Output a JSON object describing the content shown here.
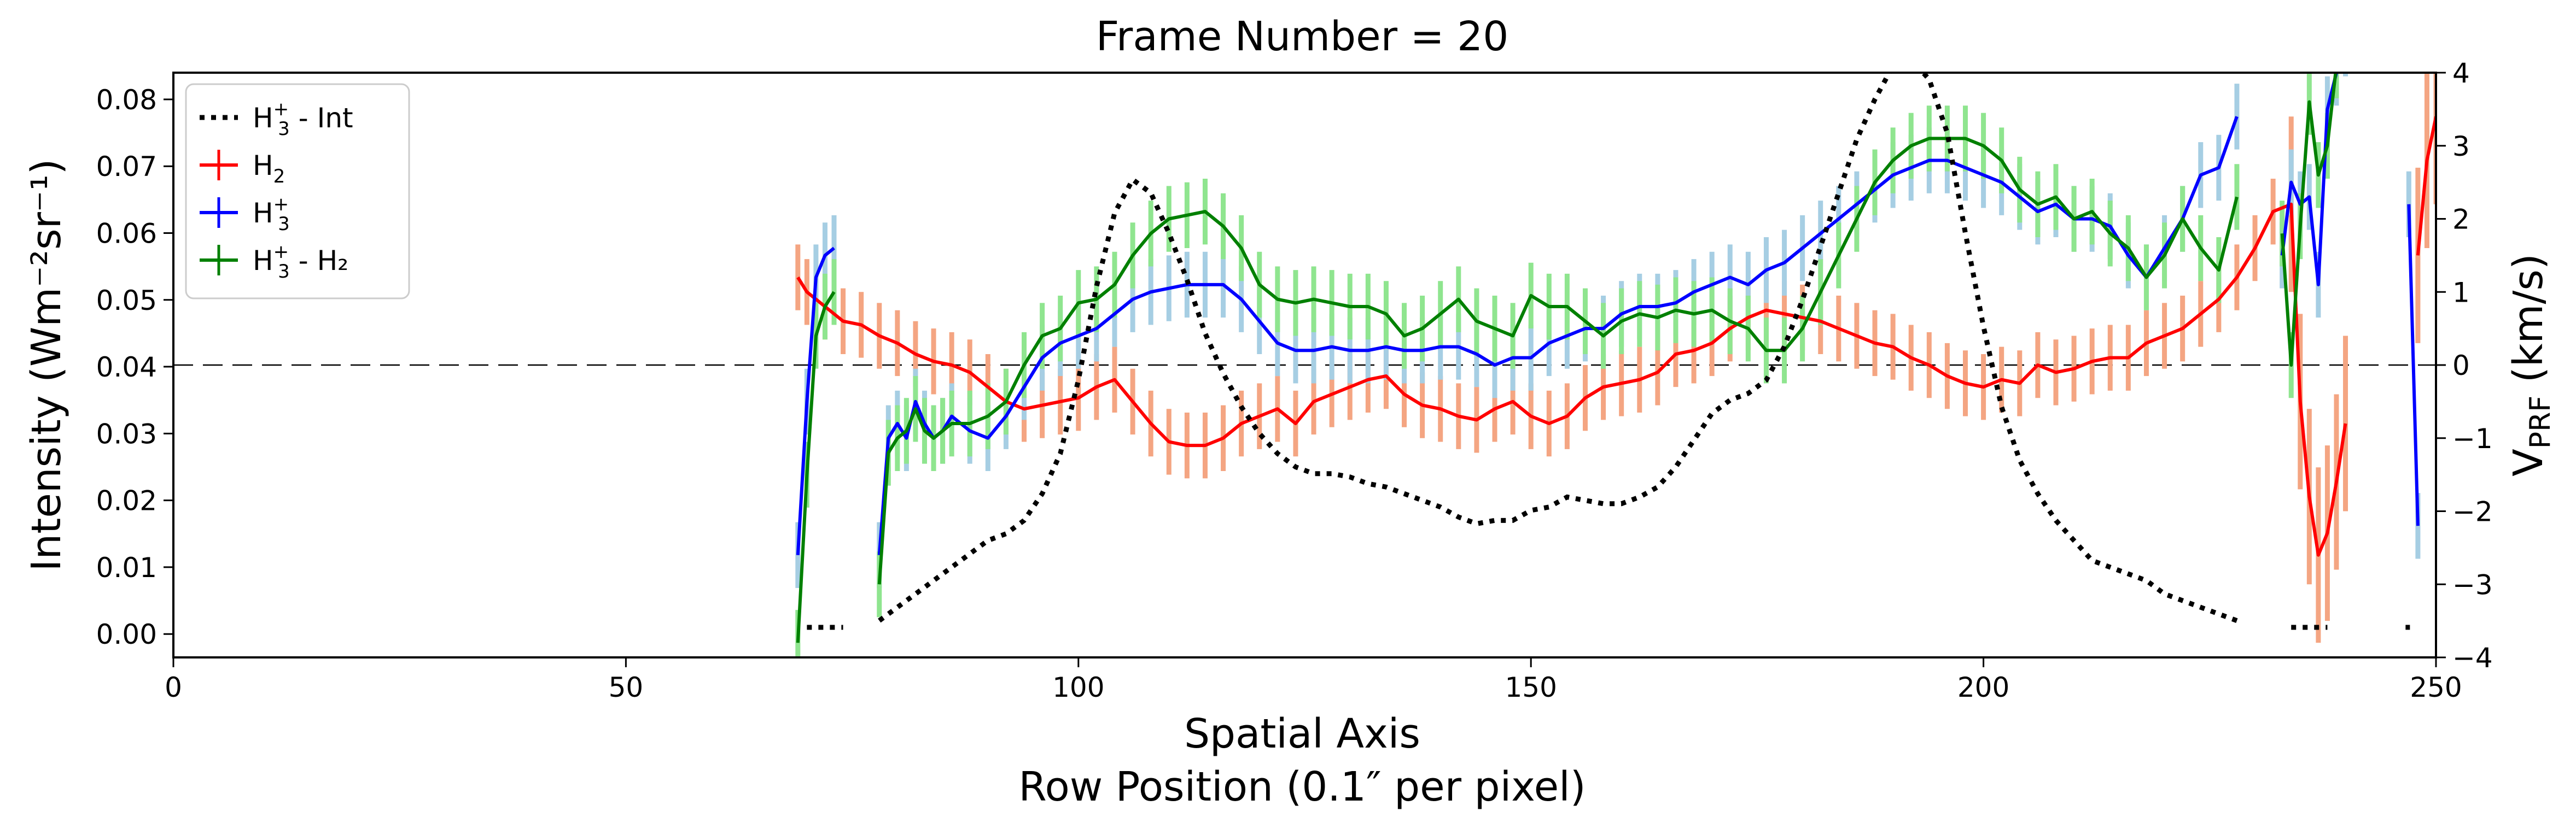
{
  "chart_data": {
    "type": "line",
    "title": "Frame Number = 20",
    "xlabel_line1": "Spatial Axis",
    "xlabel_line2": "Row Position (0.1″ per pixel)",
    "ylabel_left": "Intensity (Wm⁻²sr⁻¹)",
    "ylabel_right": "V",
    "ylabel_right_sub": "PRF",
    "ylabel_right_unit": " (km/s)",
    "xlim": [
      0,
      250
    ],
    "ylim_left": [
      -0.0035,
      0.084
    ],
    "ylim_right": [
      -4,
      4
    ],
    "xticks": [
      0,
      50,
      100,
      150,
      200,
      250
    ],
    "yticks_left": [
      "0.00",
      "0.01",
      "0.02",
      "0.03",
      "0.04",
      "0.05",
      "0.06",
      "0.07",
      "0.08"
    ],
    "yticks_left_values": [
      0.0,
      0.01,
      0.02,
      0.03,
      0.04,
      0.05,
      0.06,
      0.07,
      0.08
    ],
    "yticks_right": [
      "−4",
      "−3",
      "−2",
      "−1",
      "0",
      "1",
      "2",
      "3",
      "4"
    ],
    "yticks_right_values": [
      -4,
      -3,
      -2,
      -1,
      0,
      1,
      2,
      3,
      4
    ],
    "zero_line_velocity": 0,
    "legend": {
      "position": "top-left",
      "entries": [
        {
          "base": "H",
          "sub": "3",
          "sup": "+",
          "suffix": " - Int",
          "color": "#000000",
          "style": "dotted"
        },
        {
          "base": "H",
          "sub": "2",
          "sup": "",
          "suffix": "",
          "color": "#ff0000",
          "style": "errorbar"
        },
        {
          "base": "H",
          "sub": "3",
          "sup": "+",
          "suffix": "",
          "color": "#0000ff",
          "style": "errorbar"
        },
        {
          "base": "H",
          "sub": "3",
          "sup": "+",
          "suffix": " - H₂",
          "color": "#008000",
          "style": "errorbar"
        }
      ]
    },
    "intensity_series": {
      "name": "H3+ - Int",
      "color": "#000000",
      "segments": [
        {
          "x": [
            70,
            71,
            72,
            73,
            74
          ],
          "y": [
            0.001,
            0.001,
            0.001,
            0.001,
            0.001
          ]
        },
        {
          "x": [
            78,
            80,
            82,
            84,
            86,
            88,
            90,
            92,
            94,
            96,
            98,
            100,
            102,
            104,
            106,
            108,
            110,
            112,
            114,
            116,
            118,
            120,
            122,
            124,
            126,
            128,
            130,
            132,
            134,
            136,
            138,
            140,
            142,
            144,
            146,
            148,
            150,
            152,
            154,
            156,
            158,
            160,
            162,
            164,
            166,
            168,
            170,
            172,
            174,
            176,
            178,
            180,
            182,
            184,
            186,
            188,
            190,
            192,
            194,
            196,
            198,
            200,
            202,
            204,
            206,
            208,
            210,
            212,
            214,
            216,
            218,
            220,
            222,
            224,
            226,
            228
          ],
          "y": [
            0.002,
            0.004,
            0.006,
            0.008,
            0.01,
            0.012,
            0.014,
            0.015,
            0.017,
            0.021,
            0.027,
            0.038,
            0.052,
            0.063,
            0.068,
            0.066,
            0.06,
            0.053,
            0.045,
            0.039,
            0.034,
            0.03,
            0.027,
            0.025,
            0.024,
            0.024,
            0.0235,
            0.0225,
            0.022,
            0.021,
            0.02,
            0.019,
            0.0175,
            0.0165,
            0.017,
            0.017,
            0.0185,
            0.019,
            0.0205,
            0.02,
            0.0195,
            0.0195,
            0.0205,
            0.022,
            0.025,
            0.029,
            0.033,
            0.035,
            0.036,
            0.038,
            0.043,
            0.05,
            0.058,
            0.066,
            0.074,
            0.08,
            0.085,
            0.086,
            0.083,
            0.075,
            0.06,
            0.046,
            0.034,
            0.026,
            0.021,
            0.017,
            0.014,
            0.011,
            0.01,
            0.009,
            0.008,
            0.006,
            0.005,
            0.004,
            0.003,
            0.002
          ]
        },
        {
          "x": [
            234,
            235,
            236,
            237,
            238
          ],
          "y": [
            0.001,
            0.001,
            0.001,
            0.001,
            0.001
          ]
        },
        {
          "x": [
            247
          ],
          "y": [
            0.001
          ]
        }
      ]
    },
    "velocity_series": [
      {
        "name": "H2",
        "color": "#ff0000",
        "errcolor": "#f4a582",
        "segments": [
          {
            "x": [
              69,
              70,
              72,
              74,
              76,
              78,
              80,
              82,
              84,
              86,
              88,
              90,
              92,
              94,
              96,
              98,
              100,
              102,
              104,
              106,
              108,
              110,
              112,
              114,
              116,
              118,
              120,
              122,
              124,
              126,
              128,
              130,
              132,
              134,
              136,
              138,
              140,
              142,
              144,
              146,
              148,
              150,
              152,
              154,
              156,
              158,
              160,
              162,
              164,
              166,
              168,
              170,
              172,
              174,
              176,
              178,
              180,
              182,
              184,
              186,
              188,
              190,
              192,
              194,
              196,
              198,
              200,
              202,
              204,
              206,
              208,
              210,
              212,
              214,
              216,
              218,
              220,
              222,
              224,
              226,
              228,
              230,
              232,
              234,
              235,
              236,
              237,
              238,
              239,
              240
            ],
            "y": [
              1.2,
              1.0,
              0.8,
              0.6,
              0.55,
              0.4,
              0.3,
              0.15,
              0.05,
              0.0,
              -0.1,
              -0.3,
              -0.5,
              -0.6,
              -0.55,
              -0.5,
              -0.45,
              -0.3,
              -0.2,
              -0.5,
              -0.8,
              -1.05,
              -1.1,
              -1.1,
              -1.0,
              -0.8,
              -0.7,
              -0.6,
              -0.8,
              -0.5,
              -0.4,
              -0.3,
              -0.2,
              -0.15,
              -0.4,
              -0.55,
              -0.6,
              -0.7,
              -0.75,
              -0.6,
              -0.5,
              -0.7,
              -0.8,
              -0.7,
              -0.45,
              -0.3,
              -0.25,
              -0.2,
              -0.1,
              0.15,
              0.2,
              0.3,
              0.5,
              0.65,
              0.75,
              0.7,
              0.65,
              0.6,
              0.5,
              0.4,
              0.3,
              0.25,
              0.1,
              0.0,
              -0.15,
              -0.25,
              -0.3,
              -0.2,
              -0.25,
              0.0,
              -0.1,
              -0.05,
              0.05,
              0.1,
              0.1,
              0.3,
              0.4,
              0.5,
              0.7,
              0.9,
              1.2,
              1.6,
              2.1,
              2.2,
              -0.5,
              -1.8,
              -2.6,
              -2.3,
              -1.6,
              -0.8
            ]
          },
          {
            "x": [
              248,
              249,
              250
            ],
            "y": [
              1.5,
              2.8,
              3.4
            ]
          }
        ]
      },
      {
        "name": "H3+",
        "color": "#0000ff",
        "errcolor": "#a6cee3",
        "segments": [
          {
            "x": [
              69,
              70,
              71,
              72,
              73
            ],
            "y": [
              -2.6,
              -0.5,
              1.2,
              1.5,
              1.6
            ]
          },
          {
            "x": [
              78,
              79,
              80,
              81,
              82,
              83,
              84,
              85,
              86,
              88,
              90,
              92,
              94,
              96,
              98,
              100,
              102,
              104,
              106,
              108,
              110,
              112,
              114,
              116,
              118,
              120,
              122,
              124,
              126,
              128,
              130,
              132,
              134,
              136,
              138,
              140,
              142,
              144,
              146,
              148,
              150,
              152,
              154,
              156,
              158,
              160,
              162,
              164,
              166,
              168,
              170,
              172,
              174,
              176,
              178,
              180,
              182,
              184,
              186,
              188,
              190,
              192,
              194,
              196,
              198,
              200,
              202,
              204,
              206,
              208,
              210,
              212,
              214,
              216,
              218,
              220,
              222,
              224,
              226,
              228
            ],
            "y": [
              -2.6,
              -1.0,
              -0.8,
              -1.0,
              -0.5,
              -0.8,
              -1.0,
              -0.9,
              -0.7,
              -0.9,
              -1.0,
              -0.7,
              -0.3,
              0.1,
              0.3,
              0.4,
              0.5,
              0.7,
              0.9,
              1.0,
              1.05,
              1.1,
              1.1,
              1.1,
              0.9,
              0.6,
              0.3,
              0.2,
              0.2,
              0.25,
              0.2,
              0.2,
              0.25,
              0.2,
              0.2,
              0.25,
              0.25,
              0.15,
              0.0,
              0.1,
              0.1,
              0.3,
              0.4,
              0.5,
              0.5,
              0.7,
              0.8,
              0.8,
              0.85,
              1.0,
              1.1,
              1.2,
              1.1,
              1.3,
              1.4,
              1.6,
              1.8,
              2.0,
              2.2,
              2.4,
              2.6,
              2.7,
              2.8,
              2.8,
              2.7,
              2.6,
              2.5,
              2.3,
              2.1,
              2.2,
              2.0,
              2.0,
              1.9,
              1.5,
              1.2,
              1.6,
              2.0,
              2.6,
              2.7,
              3.4
            ]
          },
          {
            "x": [
              233,
              234,
              235,
              236,
              237,
              238,
              239,
              240
            ],
            "y": [
              1.5,
              2.5,
              2.2,
              2.3,
              1.1,
              3.5,
              4.0,
              4.4
            ]
          },
          {
            "x": [
              247,
              248
            ],
            "y": [
              2.2,
              -2.2
            ]
          }
        ]
      },
      {
        "name": "H3+ - H2",
        "color": "#008000",
        "errcolor": "#8fe58f",
        "segments": [
          {
            "x": [
              69,
              70,
              71,
              72,
              73
            ],
            "y": [
              -3.8,
              -1.5,
              0.4,
              0.8,
              1.0
            ]
          },
          {
            "x": [
              78,
              79,
              80,
              81,
              82,
              83,
              84,
              85,
              86,
              88,
              90,
              92,
              94,
              96,
              98,
              100,
              102,
              104,
              106,
              108,
              110,
              112,
              114,
              116,
              118,
              120,
              122,
              124,
              126,
              128,
              130,
              132,
              134,
              136,
              138,
              140,
              142,
              144,
              146,
              148,
              150,
              152,
              154,
              156,
              158,
              160,
              162,
              164,
              166,
              168,
              170,
              172,
              174,
              176,
              178,
              180,
              182,
              184,
              186,
              188,
              190,
              192,
              194,
              196,
              198,
              200,
              202,
              204,
              206,
              208,
              210,
              212,
              214,
              216,
              218,
              220,
              222,
              224,
              226,
              228
            ],
            "y": [
              -3.0,
              -1.2,
              -1.0,
              -0.9,
              -0.6,
              -0.9,
              -1.0,
              -0.9,
              -0.8,
              -0.8,
              -0.7,
              -0.5,
              0.0,
              0.4,
              0.5,
              0.85,
              0.9,
              1.1,
              1.5,
              1.8,
              2.0,
              2.05,
              2.1,
              1.9,
              1.6,
              1.1,
              0.9,
              0.85,
              0.9,
              0.85,
              0.8,
              0.8,
              0.7,
              0.4,
              0.5,
              0.7,
              0.9,
              0.6,
              0.5,
              0.4,
              0.95,
              0.8,
              0.8,
              0.6,
              0.4,
              0.6,
              0.7,
              0.65,
              0.75,
              0.7,
              0.75,
              0.6,
              0.5,
              0.2,
              0.2,
              0.5,
              1.0,
              1.5,
              2.0,
              2.5,
              2.8,
              3.0,
              3.1,
              3.1,
              3.1,
              3.0,
              2.8,
              2.4,
              2.2,
              2.3,
              2.0,
              2.1,
              1.8,
              1.6,
              1.2,
              1.5,
              2.0,
              1.6,
              1.3,
              2.3
            ]
          },
          {
            "x": [
              233,
              234,
              235,
              236,
              237,
              238,
              239
            ],
            "y": [
              1.8,
              0.0,
              1.9,
              3.6,
              2.6,
              3.0,
              4.1
            ]
          }
        ]
      }
    ]
  }
}
